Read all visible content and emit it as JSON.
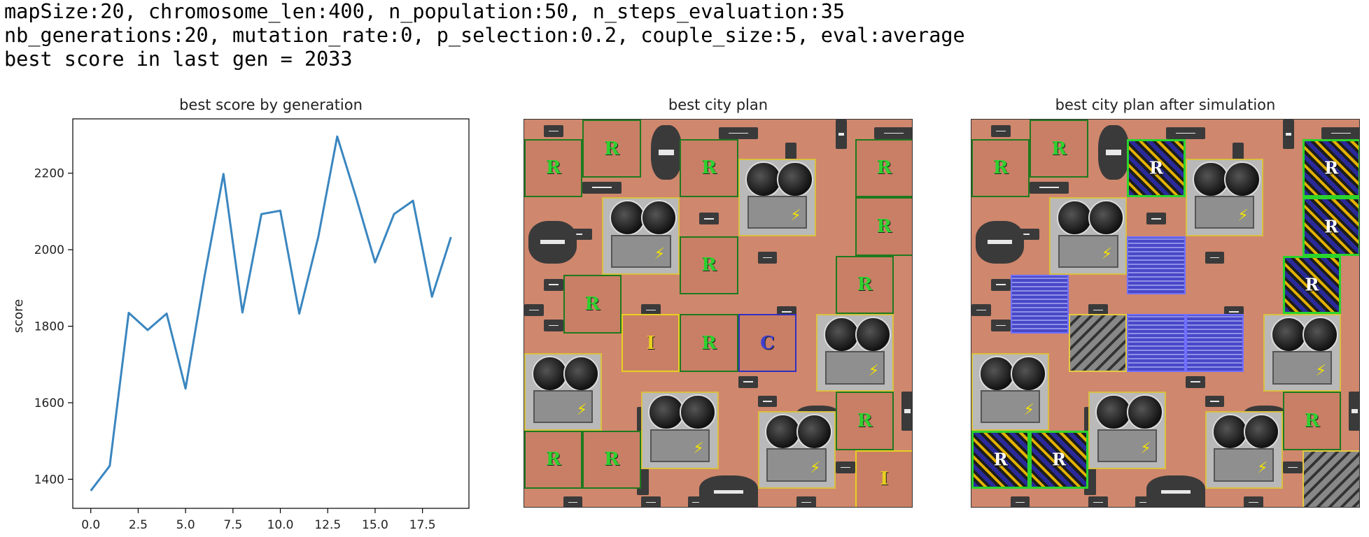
{
  "header": {
    "line1": "mapSize:20, chromosome_len:400, n_population:50, n_steps_evaluation:35",
    "line2": "nb_generations:20, mutation_rate:0, p_selection:0.2, couple_size:5, eval:average",
    "line3": "best score in last gen = 2033"
  },
  "panels": {
    "chart_title": "best score by generation",
    "plan_title": "best city plan",
    "sim_title": "best city plan after simulation"
  },
  "tile_labels": {
    "residential": "R",
    "industrial": "I",
    "commercial": "C",
    "power": "⚡"
  },
  "colors": {
    "line": "#3a86c0",
    "ground": "#cf876d",
    "residential_border": "#1e7a1e",
    "industrial_border": "#e8d020",
    "commercial_border": "#3030c0",
    "grown_residential_border": "#2bd42b",
    "power_border": "#d9c040"
  },
  "chart_data": {
    "type": "line",
    "title": "best score by generation",
    "xlabel": "",
    "ylabel": "score",
    "x": [
      0,
      1,
      2,
      3,
      4,
      5,
      6,
      7,
      8,
      9,
      10,
      11,
      12,
      13,
      14,
      15,
      16,
      17,
      18,
      19
    ],
    "values": [
      1370,
      1435,
      1835,
      1790,
      1833,
      1637,
      1930,
      2198,
      1836,
      2093,
      2102,
      1833,
      2033,
      2296,
      2136,
      1967,
      2093,
      2128,
      1877,
      2033
    ],
    "xticks": [
      "0.0",
      "2.5",
      "5.0",
      "7.5",
      "10.0",
      "12.5",
      "15.0",
      "17.5"
    ],
    "xtick_values": [
      0,
      2.5,
      5,
      7.5,
      10,
      12.5,
      15,
      17.5
    ],
    "yticks": [
      "1400",
      "1600",
      "1800",
      "2000",
      "2200"
    ],
    "ytick_values": [
      1400,
      1600,
      1800,
      2000,
      2200
    ],
    "xlim": [
      -0.95,
      19.95
    ],
    "ylim": [
      1324,
      2342
    ],
    "grid": false
  }
}
